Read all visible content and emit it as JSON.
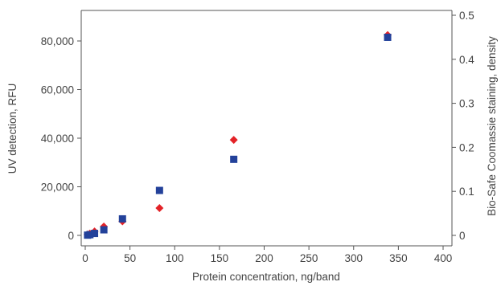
{
  "chart_data": {
    "type": "scatter",
    "title": "",
    "xlabel": "Protein concentration, ng/band",
    "ylabel_left": "UV detection, RFU",
    "ylabel_right": "Bio-Safe  Coomassie staining, density",
    "xlim": [
      0,
      400
    ],
    "ylim_left": [
      0,
      90000
    ],
    "ylim_right": [
      0,
      0.5
    ],
    "x_ticks": [
      0,
      50,
      100,
      150,
      200,
      250,
      300,
      350,
      400
    ],
    "x_tick_labels": [
      "0",
      "50",
      "100",
      "150",
      "200",
      "250",
      "300",
      "350",
      "400"
    ],
    "y_left_ticks": [
      0,
      20000,
      40000,
      60000,
      80000
    ],
    "y_left_tick_labels": [
      "0",
      "20,000",
      "40,000",
      "60,000",
      "80,000"
    ],
    "y_right_ticks": [
      0,
      0.1,
      0.2,
      0.3,
      0.4,
      0.5
    ],
    "y_right_tick_labels": [
      "0",
      "0.1",
      "0.2",
      "0.3",
      "0.4",
      "0.5"
    ],
    "grid": false,
    "legend": "none",
    "series": [
      {
        "axis": "left",
        "marker": "square",
        "color": "#23419a",
        "points": [
          {
            "x": 2.6,
            "y": 100
          },
          {
            "x": 5.2,
            "y": 300
          },
          {
            "x": 10.4,
            "y": 800
          },
          {
            "x": 20.8,
            "y": 2300
          },
          {
            "x": 41.6,
            "y": 6800
          },
          {
            "x": 83,
            "y": 18500
          },
          {
            "x": 166,
            "y": 31300
          },
          {
            "x": 338,
            "y": 81500
          }
        ]
      },
      {
        "axis": "right",
        "marker": "diamond",
        "color": "#e32227",
        "points": [
          {
            "x": 2.6,
            "y": 0.002
          },
          {
            "x": 5.2,
            "y": 0.004
          },
          {
            "x": 10.4,
            "y": 0.009
          },
          {
            "x": 20.8,
            "y": 0.02
          },
          {
            "x": 41.6,
            "y": 0.032
          },
          {
            "x": 83,
            "y": 0.062
          },
          {
            "x": 166,
            "y": 0.217
          },
          {
            "x": 338,
            "y": 0.455
          }
        ]
      }
    ]
  }
}
